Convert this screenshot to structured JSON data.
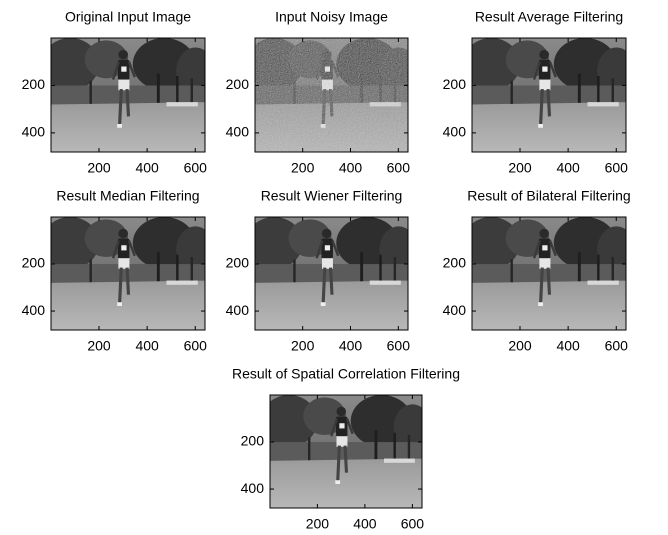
{
  "chart_data": [
    {
      "type": "image",
      "title": "Original Input Image",
      "xlim": [
        0.5,
        640.5
      ],
      "ylim": [
        0.5,
        480.5
      ],
      "y_reversed": true,
      "xticks": [
        200,
        400,
        600
      ],
      "yticks": [
        200,
        400
      ],
      "noise": false
    },
    {
      "type": "image",
      "title": "Input Noisy Image",
      "xlim": [
        0.5,
        640.5
      ],
      "ylim": [
        0.5,
        480.5
      ],
      "y_reversed": true,
      "xticks": [
        200,
        400,
        600
      ],
      "yticks": [
        200,
        400
      ],
      "noise": true
    },
    {
      "type": "image",
      "title": "Result Average Filtering",
      "xlim": [
        0.5,
        640.5
      ],
      "ylim": [
        0.5,
        480.5
      ],
      "y_reversed": true,
      "xticks": [
        200,
        400,
        600
      ],
      "yticks": [
        200,
        400
      ],
      "noise": false
    },
    {
      "type": "image",
      "title": "Result Median Filtering",
      "xlim": [
        0.5,
        640.5
      ],
      "ylim": [
        0.5,
        480.5
      ],
      "y_reversed": true,
      "xticks": [
        200,
        400,
        600
      ],
      "yticks": [
        200,
        400
      ],
      "noise": false
    },
    {
      "type": "image",
      "title": "Result Wiener Filtering",
      "xlim": [
        0.5,
        640.5
      ],
      "ylim": [
        0.5,
        480.5
      ],
      "y_reversed": true,
      "xticks": [
        200,
        400,
        600
      ],
      "yticks": [
        200,
        400
      ],
      "noise": false
    },
    {
      "type": "image",
      "title": "Result of Bilateral Filtering",
      "xlim": [
        0.5,
        640.5
      ],
      "ylim": [
        0.5,
        480.5
      ],
      "y_reversed": true,
      "xticks": [
        200,
        400,
        600
      ],
      "yticks": [
        200,
        400
      ],
      "noise": false
    },
    {
      "type": "image",
      "title": "Result of Spatial Correlation Filtering",
      "xlim": [
        0.5,
        640.5
      ],
      "ylim": [
        0.5,
        480.5
      ],
      "y_reversed": true,
      "xticks": [
        200,
        400,
        600
      ],
      "yticks": [
        200,
        400
      ],
      "noise": false
    }
  ]
}
